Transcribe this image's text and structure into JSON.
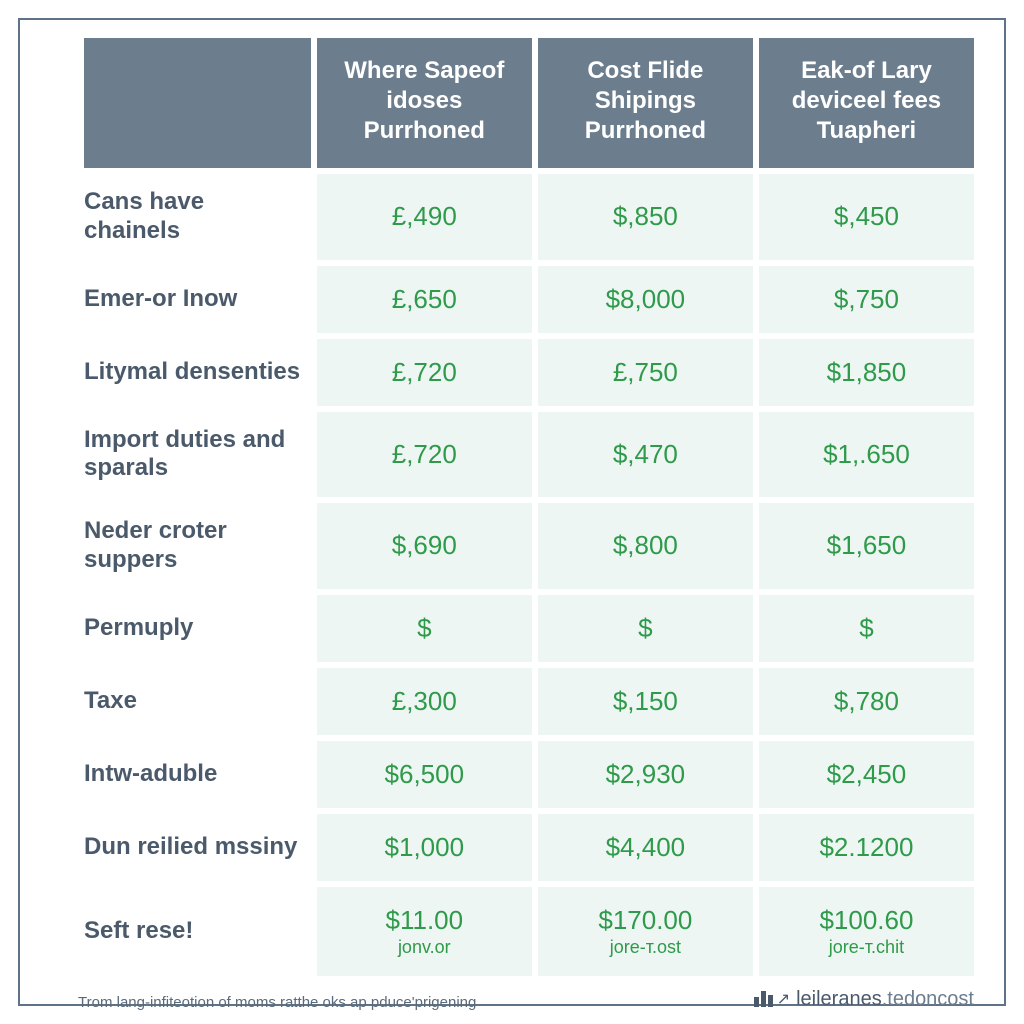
{
  "table": {
    "type": "table",
    "background_color": "#ffffff",
    "border_color": "#5f7388",
    "header_bg": "#6c7d8d",
    "header_fg": "#ffffff",
    "header_fontsize": 24,
    "header_fontweight": 700,
    "label_color": "#4b5a6b",
    "label_fontsize": 24,
    "label_fontweight": 600,
    "cell_bg": "#eef6f4",
    "value_color": "#2e9a4a",
    "value_fontsize": 26,
    "subtext_fontsize": 18,
    "column_widths_pct": [
      26,
      24.66,
      24.66,
      24.66
    ],
    "columns": [
      "",
      "Where Sapeof idoses Purrhoned",
      "Cost Flide Shipings Purrhoned",
      "Eak-of Lary deviceel fees Tuapheri"
    ],
    "rows": [
      {
        "label": "Cans have chainels",
        "cells": [
          "£,490",
          "$,850",
          "$,450"
        ]
      },
      {
        "label": "Emer-or Inow",
        "cells": [
          "£,650",
          "$8,000",
          "$,750"
        ]
      },
      {
        "label": "Litymal densenties",
        "cells": [
          "£,720",
          "£,750",
          "$1,850"
        ]
      },
      {
        "label": "Import duties and sparals",
        "cells": [
          "£,720",
          "$,470",
          "$1,.650"
        ]
      },
      {
        "label": "Neder croter suppers",
        "cells": [
          "$,690",
          "$,800",
          "$1,650"
        ]
      },
      {
        "label": "Permuply",
        "cells": [
          "$",
          "$",
          "$"
        ]
      },
      {
        "label": "Taxe",
        "cells": [
          "£,300",
          "$,150",
          "$,780"
        ]
      },
      {
        "label": "Intw-aduble",
        "cells": [
          "$6,500",
          "$2,930",
          "$2,450"
        ]
      },
      {
        "label": "Dun reilied mssiny",
        "cells": [
          "$1,000",
          "$4,400",
          "$2.1200"
        ]
      },
      {
        "label": "Seft rese!",
        "cells": [
          "$11.00",
          "$170.00",
          "$100.60"
        ],
        "sub": [
          "jonv.or",
          "jore-т.ost",
          "jore-т.chit"
        ]
      }
    ]
  },
  "footer": {
    "note": "Trom lang-infiteotion of moms ratthe oks ap pduce'prigening",
    "brand_name": "leileranes",
    "brand_domain": ".tedoncost"
  }
}
